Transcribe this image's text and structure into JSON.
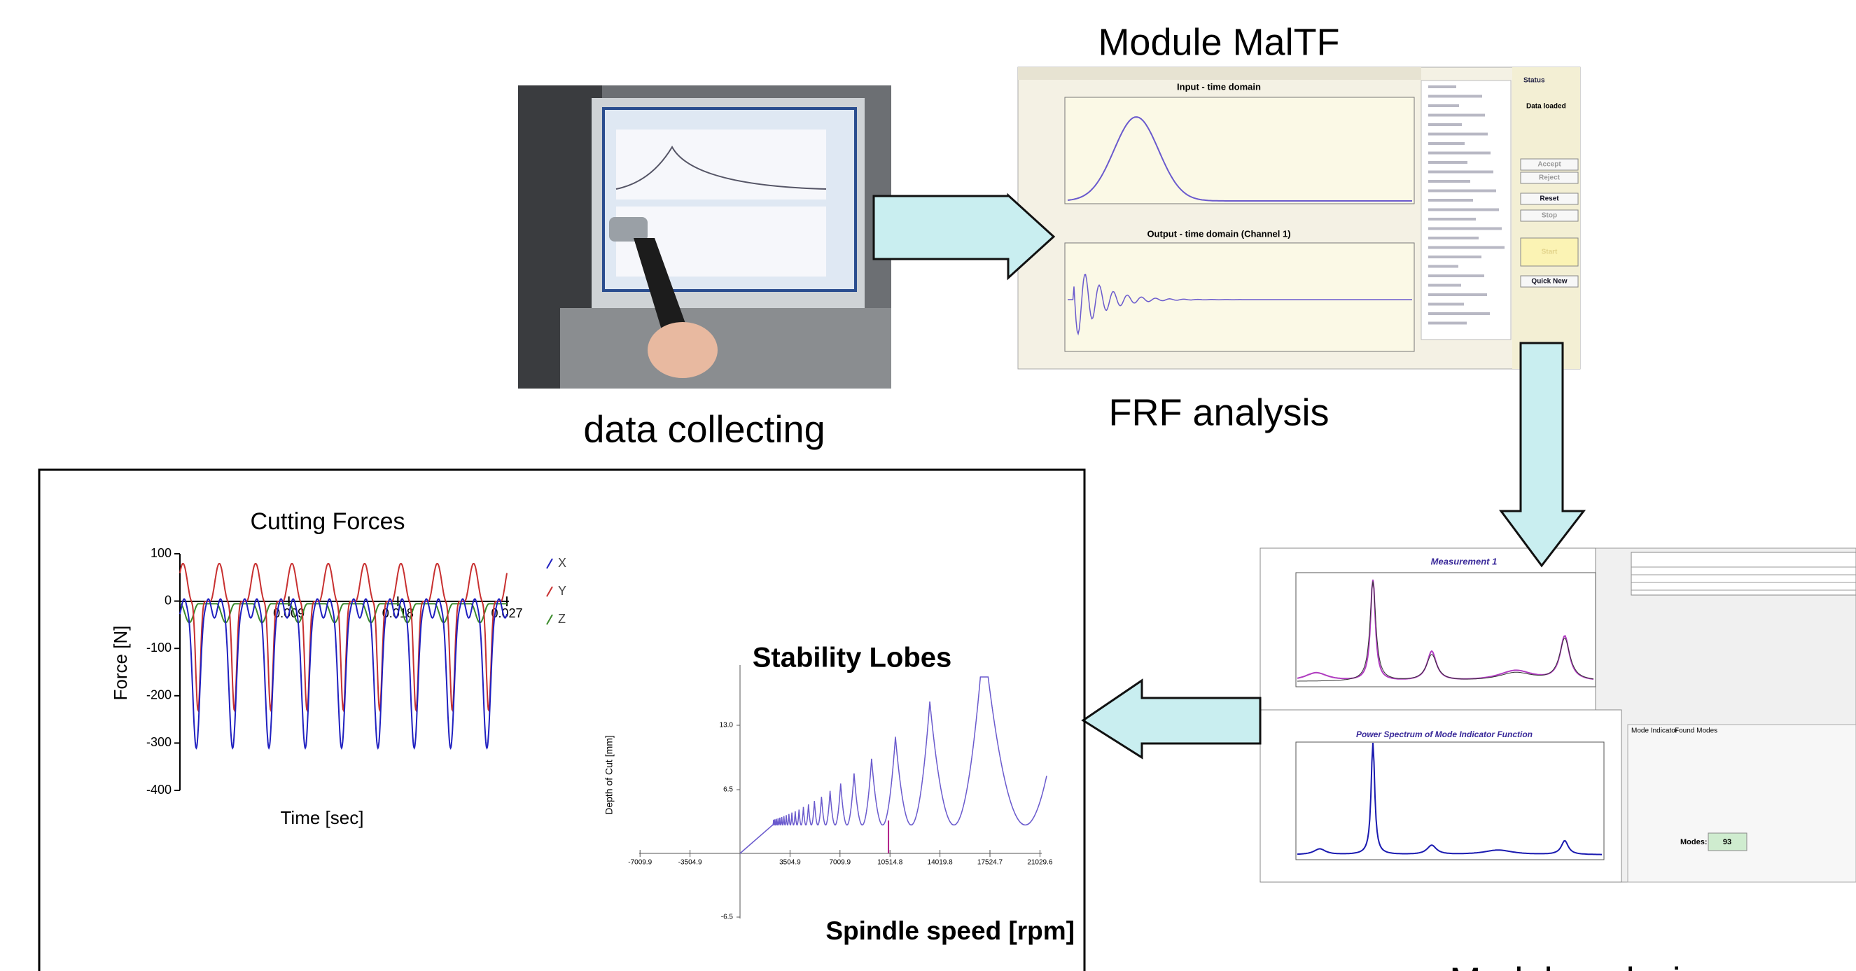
{
  "title_module": "Module MalTF",
  "captions": {
    "data_collecting": "data collecting",
    "frf_analysis": "FRF analysis",
    "modal_analysis": "Modal analysis"
  },
  "frf_window": {
    "input_title": "Input - time domain",
    "output_title": "Output - time domain (Channel 1)",
    "status": "Status",
    "data_loaded": "Data loaded",
    "buttons": [
      "Accept",
      "Reject",
      "Reset",
      "Stop",
      "Start",
      "Quick New"
    ]
  },
  "modal_window": {
    "measurement_title": "Measurement 1",
    "spectrum_title": "Power Spectrum of Mode Indicator Function",
    "tabs": [
      "Mode Indicator",
      "Found Modes"
    ],
    "modes_label": "Modes:",
    "modes_value": "93"
  },
  "cutting_forces": {
    "title": "Cutting Forces",
    "y_label": "Force [N]",
    "x_label": "Time [sec]",
    "yticks": [
      "100",
      "0",
      "-100",
      "-200",
      "-300",
      "-400"
    ],
    "xticks": [
      "0.009",
      "0.018",
      "0.027"
    ],
    "legend": [
      "X",
      "Y",
      "Z"
    ]
  },
  "stability_lobes": {
    "title": "Stability Lobes",
    "y_label": "Depth of Cut [mm]",
    "x_label": "Spindle speed [rpm]",
    "yticks": [
      "13.0",
      "6.5",
      "-6.5"
    ],
    "xticks": [
      "-7009.9",
      "-3504.9",
      "3504.9",
      "7009.9",
      "10514.8",
      "14019.8",
      "17524.7",
      "21029.6"
    ]
  }
}
